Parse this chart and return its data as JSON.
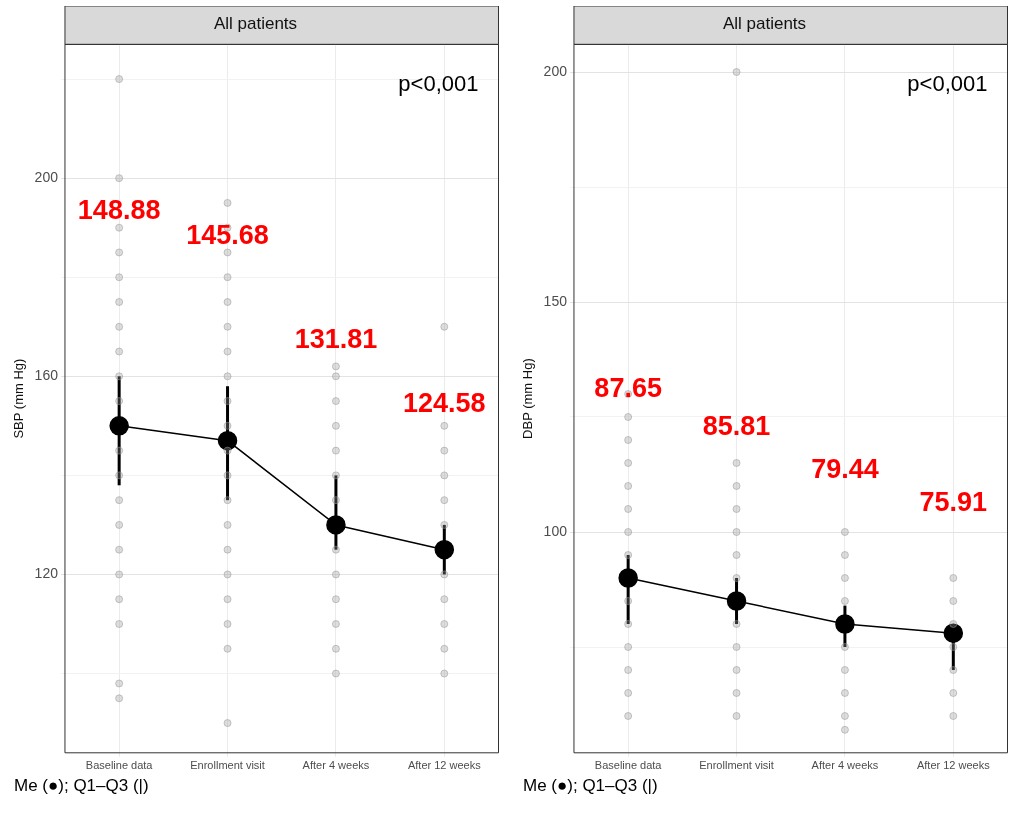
{
  "chart_data": [
    {
      "type": "line",
      "title": "All patients",
      "ylabel": "SBP (mm Hg)",
      "categories": [
        "Baseline data",
        "Enrollment visit",
        "After 4 weeks",
        "After 12 weeks"
      ],
      "ylim": [
        84,
        227
      ],
      "yticks": [
        {
          "value": 100,
          "label": null
        },
        120,
        {
          "value": 140,
          "label": null
        },
        160,
        {
          "value": 180,
          "label": null
        },
        200,
        {
          "value": 220,
          "label": null
        }
      ],
      "grid": true,
      "legend": false,
      "series": [
        {
          "type": "scatter",
          "color": "#9a9a9a",
          "marker": "circle",
          "x": [
            "Baseline data",
            "Baseline data",
            "Baseline data",
            "Baseline data",
            "Baseline data",
            "Baseline data",
            "Baseline data",
            "Baseline data",
            "Baseline data",
            "Baseline data",
            "Baseline data",
            "Baseline data",
            "Baseline data",
            "Baseline data",
            "Baseline data",
            "Baseline data",
            "Baseline data",
            "Baseline data",
            "Baseline data",
            "Baseline data",
            "Enrollment visit",
            "Enrollment visit",
            "Enrollment visit",
            "Enrollment visit",
            "Enrollment visit",
            "Enrollment visit",
            "Enrollment visit",
            "Enrollment visit",
            "Enrollment visit",
            "Enrollment visit",
            "Enrollment visit",
            "Enrollment visit",
            "Enrollment visit",
            "Enrollment visit",
            "Enrollment visit",
            "Enrollment visit",
            "Enrollment visit",
            "Enrollment visit",
            "Enrollment visit",
            "Enrollment visit",
            "After 4 weeks",
            "After 4 weeks",
            "After 4 weeks",
            "After 4 weeks",
            "After 4 weeks",
            "After 4 weeks",
            "After 4 weeks",
            "After 4 weeks",
            "After 4 weeks",
            "After 4 weeks",
            "After 4 weeks",
            "After 4 weeks",
            "After 4 weeks",
            "After 12 weeks",
            "After 12 weeks",
            "After 12 weeks",
            "After 12 weeks",
            "After 12 weeks",
            "After 12 weeks",
            "After 12 weeks",
            "After 12 weeks",
            "After 12 weeks",
            "After 12 weeks",
            "After 12 weeks"
          ],
          "values": [
            220,
            200,
            190,
            185,
            180,
            175,
            170,
            165,
            160,
            155,
            145,
            140,
            135,
            130,
            125,
            120,
            115,
            110,
            98,
            95,
            195,
            190,
            185,
            180,
            175,
            170,
            165,
            160,
            155,
            150,
            145,
            140,
            135,
            130,
            125,
            120,
            115,
            110,
            105,
            90,
            162,
            160,
            155,
            150,
            145,
            140,
            135,
            125,
            120,
            115,
            110,
            105,
            100,
            170,
            150,
            145,
            140,
            135,
            130,
            120,
            115,
            110,
            105,
            100
          ]
        },
        {
          "type": "line",
          "color": "#000000",
          "marker": "circle",
          "values": [
            150,
            147,
            130,
            125
          ],
          "errors": [
            [
              138,
              160
            ],
            [
              135,
              158
            ],
            [
              125,
              140
            ],
            [
              120,
              130
            ]
          ]
        }
      ],
      "annotations": [
        "p<0,001",
        "Me (●); Q1–Q3 (|)",
        "148.88",
        "145.68",
        "131.81",
        "124.58"
      ]
    },
    {
      "type": "line",
      "title": "All patients",
      "ylabel": "DBP (mm Hg)",
      "categories": [
        "Baseline data",
        "Enrollment visit",
        "After 4 weeks",
        "After 12 weeks"
      ],
      "ylim": [
        52,
        206
      ],
      "yticks": [
        {
          "value": 75,
          "label": null
        },
        100,
        {
          "value": 125,
          "label": null
        },
        150,
        {
          "value": 175,
          "label": null
        },
        200
      ],
      "grid": true,
      "legend": false,
      "series": [
        {
          "type": "scatter",
          "color": "#9a9a9a",
          "marker": "circle",
          "x": [
            "Baseline data",
            "Baseline data",
            "Baseline data",
            "Baseline data",
            "Baseline data",
            "Baseline data",
            "Baseline data",
            "Baseline data",
            "Baseline data",
            "Baseline data",
            "Baseline data",
            "Baseline data",
            "Baseline data",
            "Baseline data",
            "Enrollment visit",
            "Enrollment visit",
            "Enrollment visit",
            "Enrollment visit",
            "Enrollment visit",
            "Enrollment visit",
            "Enrollment visit",
            "Enrollment visit",
            "Enrollment visit",
            "Enrollment visit",
            "Enrollment visit",
            "Enrollment visit",
            "After 4 weeks",
            "After 4 weeks",
            "After 4 weeks",
            "After 4 weeks",
            "After 4 weeks",
            "After 4 weeks",
            "After 4 weeks",
            "After 4 weeks",
            "After 4 weeks",
            "After 12 weeks",
            "After 12 weeks",
            "After 12 weeks",
            "After 12 weeks",
            "After 12 weeks",
            "After 12 weeks",
            "After 12 weeks"
          ],
          "values": [
            130,
            125,
            120,
            115,
            110,
            105,
            100,
            95,
            85,
            80,
            75,
            70,
            65,
            60,
            200,
            115,
            110,
            105,
            100,
            95,
            90,
            80,
            75,
            70,
            65,
            60,
            100,
            95,
            90,
            85,
            75,
            70,
            65,
            60,
            57,
            90,
            85,
            80,
            75,
            70,
            65,
            60
          ]
        },
        {
          "type": "line",
          "color": "#000000",
          "marker": "circle",
          "values": [
            90,
            85,
            80,
            78
          ],
          "errors": [
            [
              80,
              95
            ],
            [
              80,
              90
            ],
            [
              75,
              84
            ],
            [
              70,
              80
            ]
          ]
        }
      ],
      "annotations": [
        "p<0,001",
        "Me (●); Q1–Q3 (|)",
        "87.65",
        "85.81",
        "79.44",
        "75.91"
      ]
    }
  ]
}
